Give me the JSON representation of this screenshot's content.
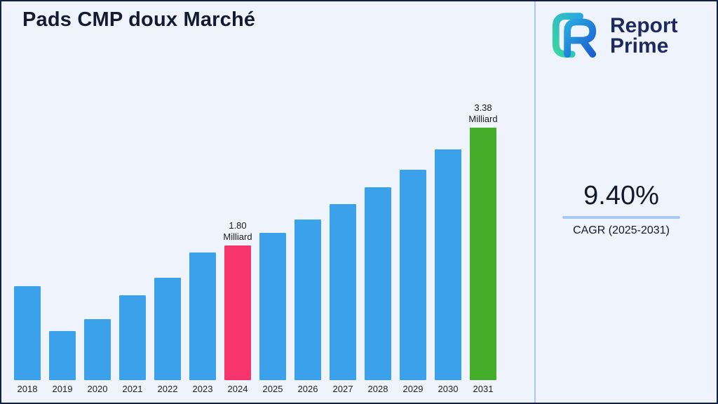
{
  "page": {
    "title": "Pads CMP doux Marché"
  },
  "logo": {
    "line1": "Report",
    "line2": "Prime"
  },
  "stats": {
    "cagr_value": "9.40%",
    "cagr_label": "CAGR (2025-2031)"
  },
  "colors": {
    "background": "#eff4fc",
    "border": "#16203c",
    "bar_default": "#3AA1EA",
    "bar_highlight": "#F8346C",
    "bar_final": "#45AD29",
    "accent_line": "#a9c9f2",
    "divider": "#aac8f2"
  },
  "chart_data": {
    "type": "bar",
    "title": "Pads CMP doux Marché",
    "unit": "Milliard",
    "categories": [
      "2018",
      "2019",
      "2020",
      "2021",
      "2022",
      "2023",
      "2024",
      "2025",
      "2026",
      "2027",
      "2028",
      "2029",
      "2030",
      "2031"
    ],
    "values": [
      1.26,
      0.66,
      0.82,
      1.14,
      1.37,
      1.71,
      1.8,
      1.97,
      2.15,
      2.36,
      2.58,
      2.82,
      3.09,
      3.38
    ],
    "ylim": [
      0,
      3.5
    ],
    "xlabel": "",
    "ylabel": "",
    "grid": false,
    "legend": "none",
    "annotations": {
      "2024": "1.80\nMilliard",
      "2031": "3.38\nMilliard"
    },
    "bar_colors": {
      "2024": "#F8346C",
      "2031": "#45AD29"
    }
  }
}
